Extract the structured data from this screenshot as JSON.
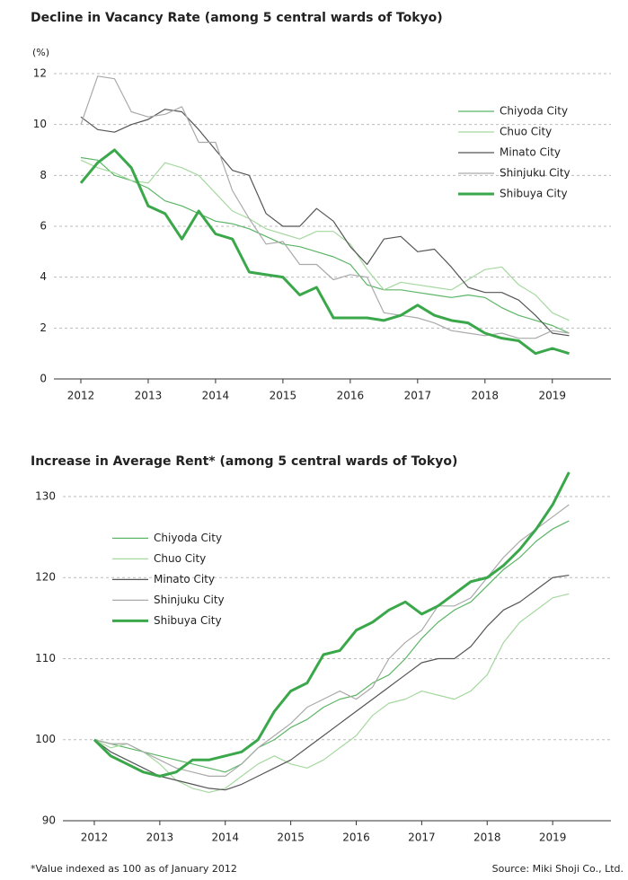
{
  "chart_data": [
    {
      "type": "line",
      "title": "Decline in Vacancy Rate (among 5 central wards of Tokyo)",
      "ylabel": "(%)",
      "x": [
        2012,
        2012.25,
        2012.5,
        2012.75,
        2013,
        2013.25,
        2013.5,
        2013.75,
        2014,
        2014.25,
        2014.5,
        2014.75,
        2015,
        2015.25,
        2015.5,
        2015.75,
        2016,
        2016.25,
        2016.5,
        2016.75,
        2017,
        2017.25,
        2017.5,
        2017.75,
        2018,
        2018.25,
        2018.5,
        2018.75,
        2019,
        2019.25
      ],
      "xlim": [
        2011.6,
        2019.87
      ],
      "xticks": [
        2012,
        2013,
        2014,
        2015,
        2016,
        2017,
        2018,
        2019
      ],
      "ylim": [
        0,
        12
      ],
      "yticks": [
        0,
        2,
        4,
        6,
        8,
        10,
        12
      ],
      "grid": true,
      "legend": "upper right",
      "series": [
        {
          "name": "Chiyoda City",
          "color": "#5cb566",
          "linewidth": 1.2,
          "values": [
            8.7,
            8.6,
            8.0,
            7.8,
            7.5,
            7.0,
            6.8,
            6.5,
            6.2,
            6.1,
            5.9,
            5.6,
            5.3,
            5.2,
            5.0,
            4.8,
            4.5,
            3.7,
            3.5,
            3.5,
            3.4,
            3.3,
            3.2,
            3.3,
            3.2,
            2.8,
            2.5,
            2.3,
            2.1,
            1.8
          ]
        },
        {
          "name": "Chuo City",
          "color": "#a6d8a0",
          "linewidth": 1.2,
          "values": [
            8.6,
            8.3,
            8.1,
            7.8,
            7.7,
            8.5,
            8.3,
            8.0,
            7.3,
            6.6,
            6.3,
            5.9,
            5.7,
            5.5,
            5.8,
            5.8,
            5.3,
            4.3,
            3.5,
            3.8,
            3.7,
            3.6,
            3.5,
            3.9,
            4.3,
            4.4,
            3.7,
            3.3,
            2.6,
            2.3
          ]
        },
        {
          "name": "Minato City",
          "color": "#555555",
          "linewidth": 1.2,
          "values": [
            10.3,
            9.8,
            9.7,
            10.0,
            10.2,
            10.6,
            10.5,
            9.8,
            9.0,
            8.2,
            8.0,
            6.5,
            6.0,
            6.0,
            6.7,
            6.2,
            5.2,
            4.5,
            5.5,
            5.6,
            5.0,
            5.1,
            4.4,
            3.6,
            3.4,
            3.4,
            3.1,
            2.5,
            1.8,
            1.7
          ]
        },
        {
          "name": "Shinjuku City",
          "color": "#aaaaaa",
          "linewidth": 1.2,
          "values": [
            10.0,
            11.9,
            11.8,
            10.5,
            10.3,
            10.4,
            10.7,
            9.3,
            9.3,
            7.4,
            6.3,
            5.3,
            5.4,
            4.5,
            4.5,
            3.9,
            4.1,
            4.0,
            2.6,
            2.5,
            2.4,
            2.2,
            1.9,
            1.8,
            1.7,
            1.8,
            1.6,
            1.6,
            1.9,
            1.8
          ]
        },
        {
          "name": "Shibuya City",
          "color": "#3aa84a",
          "linewidth": 3,
          "values": [
            7.7,
            8.5,
            9.0,
            8.3,
            6.8,
            6.5,
            5.5,
            6.6,
            5.7,
            5.5,
            4.2,
            4.1,
            4.0,
            3.3,
            3.6,
            2.4,
            2.4,
            2.4,
            2.3,
            2.5,
            2.9,
            2.5,
            2.3,
            2.2,
            1.8,
            1.6,
            1.5,
            1.0,
            1.2,
            1.0
          ]
        }
      ]
    },
    {
      "type": "line",
      "title": "Increase in Average Rent* (among 5 central wards of Tokyo)",
      "x": [
        2012,
        2012.25,
        2012.5,
        2012.75,
        2013,
        2013.25,
        2013.5,
        2013.75,
        2014,
        2014.25,
        2014.5,
        2014.75,
        2015,
        2015.25,
        2015.5,
        2015.75,
        2016,
        2016.25,
        2016.5,
        2016.75,
        2017,
        2017.25,
        2017.5,
        2017.75,
        2018,
        2018.25,
        2018.5,
        2018.75,
        2019,
        2019.25
      ],
      "xlim": [
        2011.52,
        2019.89
      ],
      "xticks": [
        2012,
        2013,
        2014,
        2015,
        2016,
        2017,
        2018,
        2019
      ],
      "ylim": [
        90,
        133.5
      ],
      "yticks": [
        90,
        100,
        110,
        120,
        130
      ],
      "grid": true,
      "legend": "upper left",
      "series": [
        {
          "name": "Chiyoda City",
          "color": "#5cb566",
          "linewidth": 1.2,
          "values": [
            100,
            99.5,
            99,
            98.5,
            98,
            97.5,
            97,
            96.5,
            96,
            97,
            99,
            100,
            101.5,
            102.5,
            104,
            105,
            105.5,
            107,
            108,
            110,
            112.5,
            114.5,
            116,
            117,
            119,
            121,
            122.5,
            124.5,
            126,
            127
          ]
        },
        {
          "name": "Chuo City",
          "color": "#a6d8a0",
          "linewidth": 1.2,
          "values": [
            100,
            99,
            99.5,
            98.5,
            97,
            95,
            94,
            93.5,
            94,
            95.5,
            97,
            98,
            97,
            96.5,
            97.5,
            99,
            100.5,
            103,
            104.5,
            105,
            106,
            105.5,
            105,
            106,
            108,
            112,
            114.5,
            116,
            117.5,
            118
          ]
        },
        {
          "name": "Minato City",
          "color": "#555555",
          "linewidth": 1.2,
          "values": [
            100,
            98.5,
            97.5,
            96.5,
            95.5,
            95,
            94.5,
            94,
            93.8,
            94.5,
            95.5,
            96.5,
            97.5,
            99,
            100.5,
            102,
            103.5,
            105,
            106.5,
            108,
            109.5,
            110,
            110,
            111.5,
            114,
            116,
            117,
            118.5,
            120,
            120.3
          ]
        },
        {
          "name": "Shinjuku City",
          "color": "#aaaaaa",
          "linewidth": 1.2,
          "values": [
            100,
            99.5,
            99.5,
            98.5,
            97.5,
            96.5,
            96,
            95.5,
            95.5,
            97,
            99,
            100.5,
            102,
            104,
            105,
            106,
            105,
            106.5,
            110,
            112,
            113.5,
            116.5,
            116.5,
            117.5,
            120,
            122.5,
            124.5,
            126,
            127.5,
            129
          ]
        },
        {
          "name": "Shibuya City",
          "color": "#3aa84a",
          "linewidth": 3,
          "values": [
            100,
            98,
            97,
            96,
            95.5,
            96,
            97.5,
            97.5,
            98,
            98.5,
            100,
            103.5,
            106,
            107,
            110.5,
            111,
            113.5,
            114.5,
            116,
            117,
            115.5,
            116.5,
            118,
            119.5,
            120,
            121.5,
            123.5,
            126,
            129,
            133
          ]
        }
      ]
    }
  ],
  "footnote": "*Value indexed as 100 as of January 2012",
  "source": "Source: Miki Shoji Co., Ltd."
}
